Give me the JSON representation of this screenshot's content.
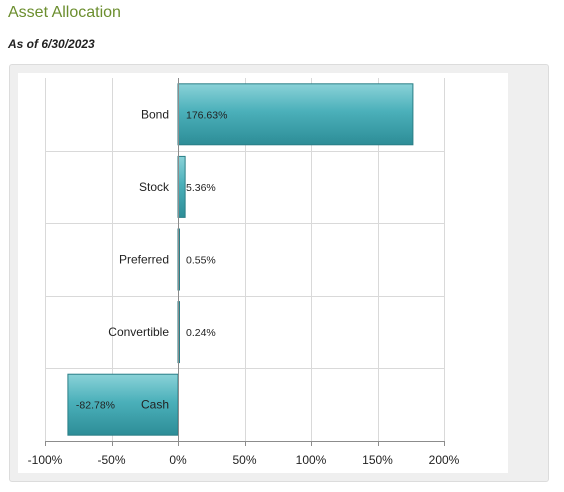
{
  "header": {
    "title": "Asset Allocation",
    "as_of": "As of 6/30/2023"
  },
  "colors": {
    "bar": "#4bb0ba",
    "bar_light": "#8ad2d8",
    "bar_dark": "#2d8d97",
    "bar_border": "#2a7e86",
    "grid": "#d9d9d9",
    "axis": "#8c8c8c",
    "title": "#6b8e2e"
  },
  "chart_data": {
    "type": "bar",
    "orientation": "horizontal",
    "categories": [
      "Bond",
      "Stock",
      "Preferred",
      "Convertible",
      "Cash"
    ],
    "values": [
      176.63,
      5.36,
      0.55,
      0.24,
      -82.78
    ],
    "data_labels": [
      "176.63%",
      "5.36%",
      "0.55%",
      "0.24%",
      "-82.78%"
    ],
    "xlim": [
      -100,
      200
    ],
    "x_ticks": [
      -100,
      -50,
      0,
      50,
      100,
      150,
      200
    ],
    "x_tick_labels": [
      "-100%",
      "-50%",
      "0%",
      "50%",
      "100%",
      "150%",
      "200%"
    ],
    "grid": true,
    "legend": false
  }
}
